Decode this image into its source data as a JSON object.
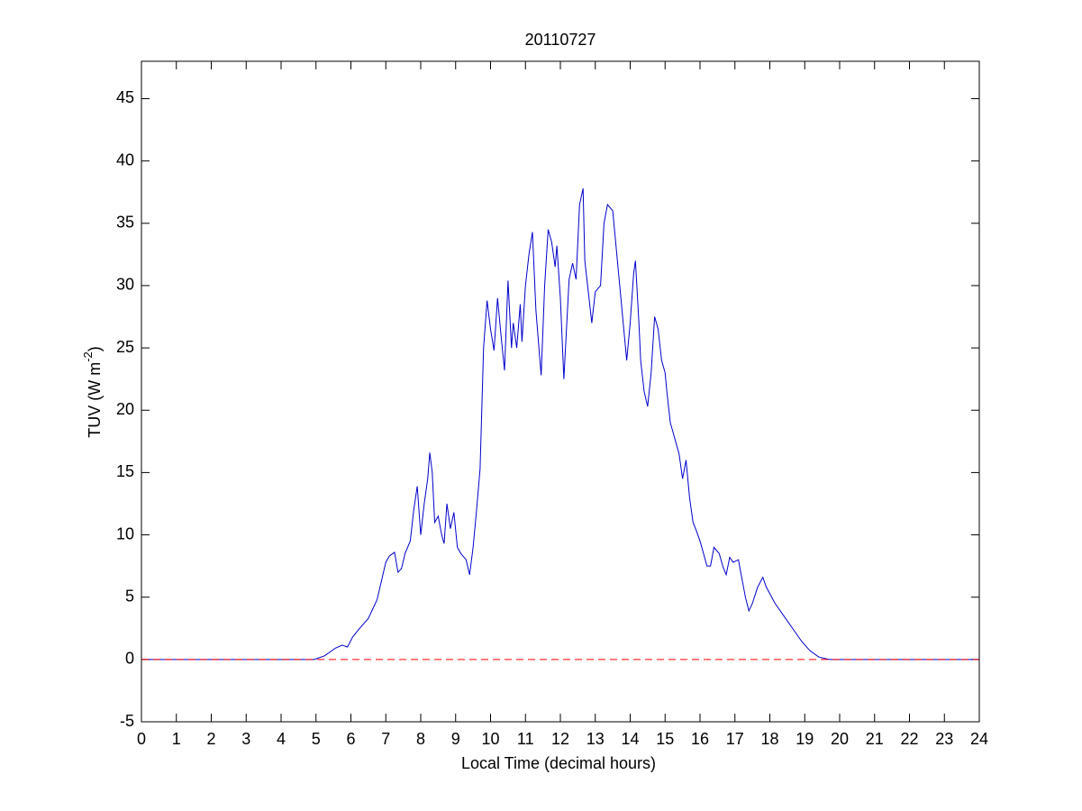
{
  "chart_data": {
    "type": "line",
    "title": "20110727",
    "xlabel": "Local Time (decimal hours)",
    "ylabel_parts": [
      "TUV (W m",
      "-2",
      ")"
    ],
    "x": [
      0,
      4.95,
      5.25,
      5.55,
      5.75,
      5.9,
      6.05,
      6.25,
      6.5,
      6.75,
      7.0,
      7.1,
      7.25,
      7.35,
      7.45,
      7.55,
      7.7,
      7.8,
      7.9,
      8.0,
      8.1,
      8.2,
      8.26,
      8.33,
      8.4,
      8.5,
      8.6,
      8.67,
      8.75,
      8.85,
      8.95,
      9.05,
      9.15,
      9.3,
      9.4,
      9.5,
      9.6,
      9.7,
      9.8,
      9.9,
      10.0,
      10.1,
      10.2,
      10.3,
      10.4,
      10.5,
      10.6,
      10.65,
      10.75,
      10.85,
      10.9,
      11.0,
      11.1,
      11.2,
      11.3,
      11.4,
      11.45,
      11.55,
      11.65,
      11.75,
      11.85,
      11.9,
      12.0,
      12.1,
      12.25,
      12.35,
      12.45,
      12.55,
      12.65,
      12.7,
      12.8,
      12.9,
      13.0,
      13.15,
      13.25,
      13.35,
      13.5,
      13.6,
      13.7,
      13.8,
      13.9,
      14.0,
      14.1,
      14.15,
      14.25,
      14.3,
      14.4,
      14.5,
      14.6,
      14.7,
      14.8,
      14.9,
      15.0,
      15.05,
      15.15,
      15.3,
      15.4,
      15.5,
      15.6,
      15.7,
      15.8,
      15.9,
      16.0,
      16.1,
      16.2,
      16.3,
      16.4,
      16.55,
      16.65,
      16.75,
      16.85,
      16.95,
      17.1,
      17.2,
      17.3,
      17.4,
      17.5,
      17.65,
      17.8,
      17.9,
      18.15,
      18.4,
      18.65,
      18.9,
      19.15,
      19.4,
      19.7,
      24
    ],
    "series": [
      {
        "color": "#0000cc",
        "values": [
          0,
          0,
          0.3,
          0.9,
          1.15,
          1.0,
          1.8,
          2.5,
          3.3,
          4.8,
          7.8,
          8.3,
          8.6,
          7.0,
          7.3,
          8.5,
          9.5,
          12,
          13.9,
          10,
          12.5,
          14.5,
          16.6,
          15,
          11,
          11.5,
          10,
          9.3,
          12.5,
          10.5,
          11.8,
          9,
          8.5,
          8.0,
          6.8,
          9,
          12,
          15.3,
          25,
          28.8,
          26.5,
          24.8,
          29,
          26,
          23.2,
          30.4,
          25,
          27,
          25,
          28.5,
          25.5,
          30,
          32.5,
          34.3,
          28,
          24.5,
          22.8,
          30,
          34.5,
          33.5,
          31.5,
          33.2,
          29,
          22.5,
          30.5,
          31.8,
          30.5,
          36.5,
          37.8,
          32,
          29.5,
          27,
          29.5,
          30,
          35,
          36.5,
          36,
          33,
          30,
          27,
          24,
          27,
          31,
          32,
          27,
          24,
          21.5,
          20.3,
          23,
          27.5,
          26.5,
          24,
          23,
          21.5,
          19,
          17.5,
          16.5,
          14.5,
          16,
          13,
          11,
          10.3,
          9.5,
          8.5,
          7.5,
          7.5,
          9.0,
          8.5,
          7.5,
          6.8,
          8.2,
          7.8,
          8,
          6.5,
          5,
          3.9,
          4.5,
          5.8,
          6.6,
          5.8,
          4.5,
          3.5,
          2.5,
          1.5,
          0.7,
          0.2,
          0,
          0
        ]
      }
    ],
    "hline": 0,
    "hline_color": "#ff0000",
    "xlim": [
      0,
      24
    ],
    "xticks": [
      0,
      1,
      2,
      3,
      4,
      5,
      6,
      7,
      8,
      9,
      10,
      11,
      12,
      13,
      14,
      15,
      16,
      17,
      18,
      19,
      20,
      21,
      22,
      23,
      24
    ],
    "ylim": [
      -5,
      48
    ],
    "yticks": [
      -5,
      0,
      5,
      10,
      15,
      20,
      25,
      30,
      35,
      40,
      45
    ],
    "grid": false
  }
}
